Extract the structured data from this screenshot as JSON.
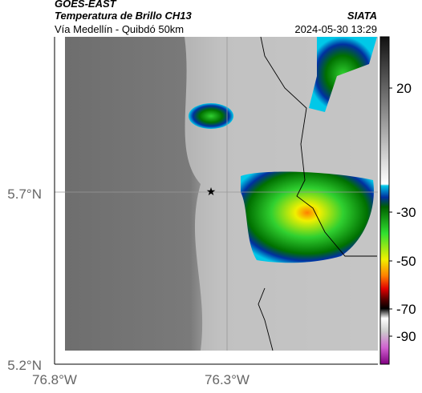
{
  "header": {
    "source": "GOES-EAST",
    "title": "Temperatura de Brillo CH13",
    "org": "SIATA",
    "route": "Vía Medellín - Quibdó 50km",
    "timestamp": "2024-05-30 13:29"
  },
  "map": {
    "lat_labels": [
      "5.7°N",
      "5.2°N"
    ],
    "lon_labels": [
      "76.8°W",
      "76.3°W"
    ]
  },
  "colorbar": {
    "tick_labels": [
      "20",
      "-30",
      "-50",
      "-70",
      "-90"
    ]
  }
}
